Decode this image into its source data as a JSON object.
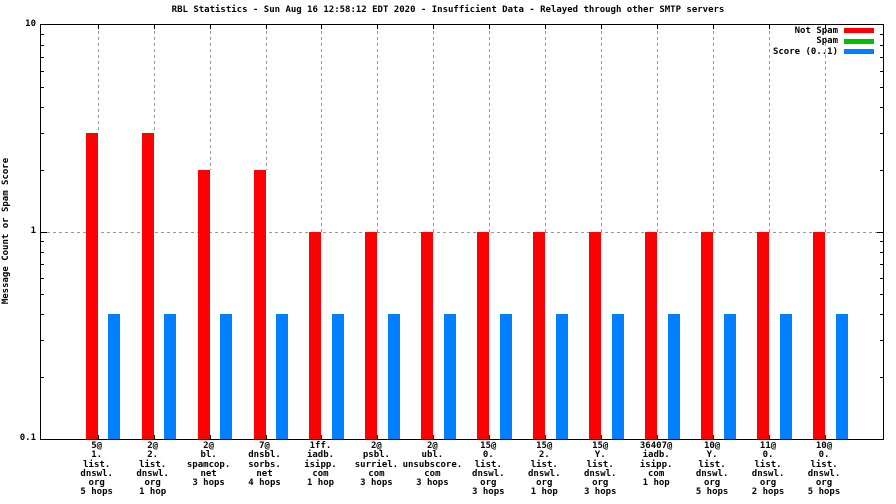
{
  "title": "RBL Statistics - Sun Aug 16 12:58:12 EDT 2020 - Insufficient Data - Relayed through other SMTP servers",
  "ylabel": "Message Count or Spam Score",
  "colors": {
    "not_spam": "#ff0000",
    "spam": "#00c000",
    "score": "#0080ff",
    "grid": "#999999",
    "text": "#000000",
    "background": "#ffffff"
  },
  "legend": [
    {
      "label": "Not Spam",
      "color": "#ff0000"
    },
    {
      "label": "Spam",
      "color": "#00c000"
    },
    {
      "label": "Score (0..1)",
      "color": "#0080ff"
    }
  ],
  "chart_data": {
    "type": "bar",
    "title": "RBL Statistics - Sun Aug 16 12:58:12 EDT 2020 - Insufficient Data - Relayed through other SMTP servers",
    "xlabel": "",
    "ylabel": "Message Count or Spam Score",
    "y_scale": "log",
    "ylim": [
      0.1,
      10
    ],
    "y_major_ticks": [
      {
        "value": 10,
        "label": "10"
      },
      {
        "value": 1,
        "label": "1"
      },
      {
        "value": 0.1,
        "label": "0.1"
      }
    ],
    "y_minor_ticks": [
      0.2,
      0.3,
      0.4,
      0.5,
      0.6,
      0.7,
      0.8,
      0.9,
      2,
      3,
      4,
      5,
      6,
      7,
      8,
      9
    ],
    "grid": {
      "horizontal_dashed_at": 1,
      "vertical_dashed_at_each_category": true
    },
    "legend_position": "top-right",
    "categories": [
      [
        "5@",
        "1.",
        "list.",
        "dnswl.",
        "org",
        "5 hops"
      ],
      [
        "2@",
        "2.",
        "list.",
        "dnswl.",
        "org",
        "1 hop"
      ],
      [
        "2@",
        "bl.",
        "spamcop.",
        "net",
        "3 hops"
      ],
      [
        "7@",
        "dnsbl.",
        "sorbs.",
        "net",
        "4 hops"
      ],
      [
        "1ff.",
        "iadb.",
        "isipp.",
        "com",
        "1 hop"
      ],
      [
        "2@",
        "psbl.",
        "surriel.",
        "com",
        "3 hops"
      ],
      [
        "2@",
        "ubl.",
        "unsubscore.",
        "com",
        "3 hops"
      ],
      [
        "15@",
        "0.",
        "list.",
        "dnswl.",
        "org",
        "3 hops"
      ],
      [
        "15@",
        "2.",
        "list.",
        "dnswl.",
        "org",
        "1 hop"
      ],
      [
        "15@",
        "Y.",
        "list.",
        "dnswl.",
        "org",
        "3 hops"
      ],
      [
        "36407@",
        "iadb.",
        "isipp.",
        "com",
        "1 hop"
      ],
      [
        "10@",
        "Y.",
        "list.",
        "dnswl.",
        "org",
        "5 hops"
      ],
      [
        "11@",
        "0.",
        "list.",
        "dnswl.",
        "org",
        "2 hops"
      ],
      [
        "10@",
        "0.",
        "list.",
        "dnswl.",
        "org",
        "5 hops"
      ]
    ],
    "series": [
      {
        "name": "Not Spam",
        "color": "#ff0000",
        "values": [
          3,
          3,
          2,
          2,
          1,
          1,
          1,
          1,
          1,
          1,
          1,
          1,
          1,
          1
        ]
      },
      {
        "name": "Spam",
        "color": "#00c000",
        "values": [
          0,
          0,
          0,
          0,
          0,
          0,
          0,
          0,
          0,
          0,
          0,
          0,
          0,
          0
        ]
      },
      {
        "name": "Score (0..1)",
        "color": "#0080ff",
        "values": [
          0.4,
          0.4,
          0.4,
          0.4,
          0.4,
          0.4,
          0.4,
          0.4,
          0.4,
          0.4,
          0.4,
          0.4,
          0.4,
          0.4
        ]
      }
    ]
  }
}
